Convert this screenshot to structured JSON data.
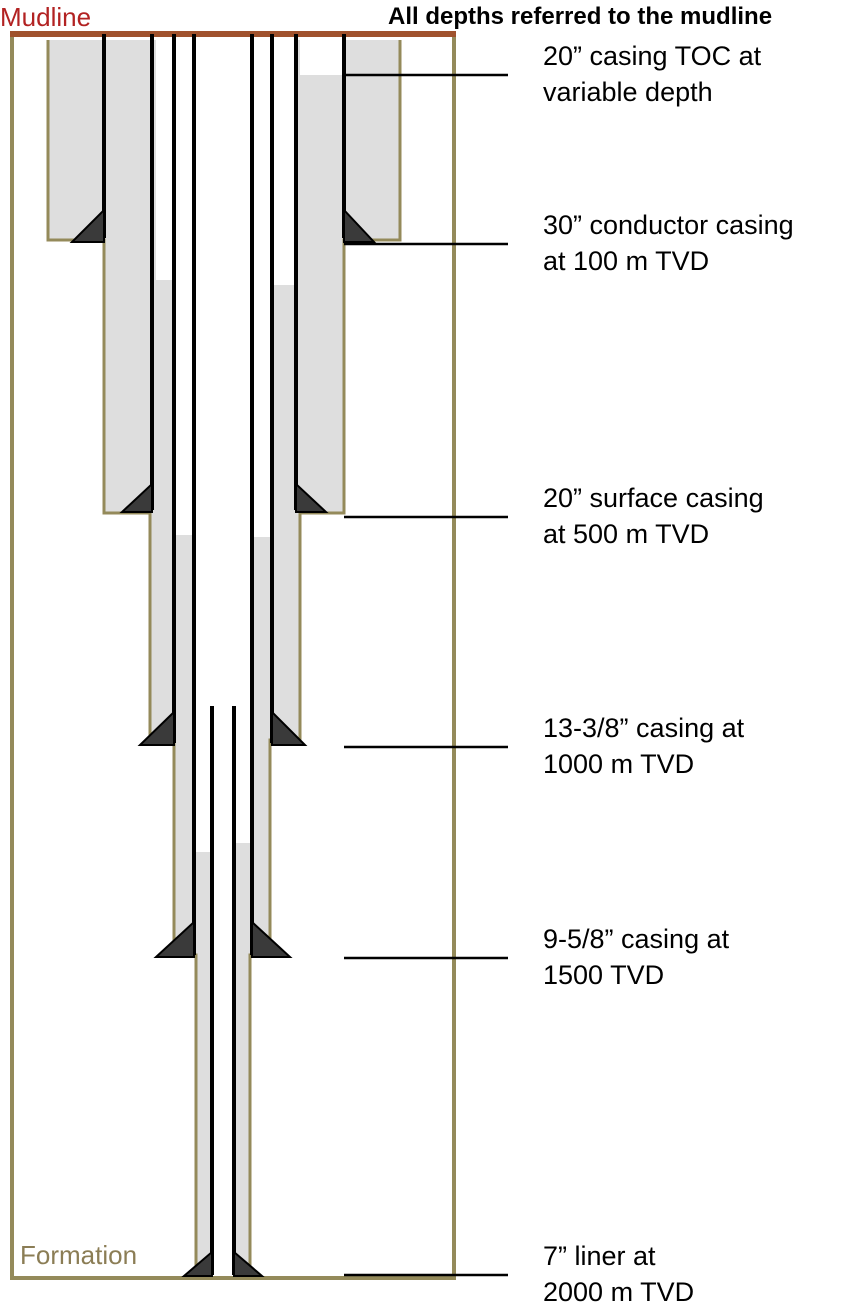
{
  "header": {
    "note": "All depths referred to the mudline"
  },
  "mudline": {
    "label": "Mudline",
    "color": "#b22222"
  },
  "formation": {
    "label": "Formation",
    "color": "#8b7d55"
  },
  "colors": {
    "mudline_line": "#a0522d",
    "formation_outline": "#948a5a",
    "cement": "#dedede",
    "casing": "#000000",
    "shoe": "#3a3a3a",
    "leader": "#000000"
  },
  "casings": [
    {
      "id": "c30",
      "label_lines": [
        "30” conductor casing",
        "at 100 m TVD"
      ]
    },
    {
      "id": "c20",
      "label_lines": [
        "20” surface casing",
        "at 500 m TVD"
      ]
    },
    {
      "id": "c13",
      "label_lines": [
        "13-3/8” casing at",
        "1000 m TVD"
      ]
    },
    {
      "id": "c9",
      "label_lines": [
        "9-5/8” casing at",
        "1500 TVD"
      ]
    },
    {
      "id": "c7",
      "label_lines": [
        "7” liner at",
        "2000 m TVD"
      ]
    }
  ],
  "toc_annotation": {
    "label_lines": [
      "20” casing TOC at",
      "variable depth"
    ]
  }
}
